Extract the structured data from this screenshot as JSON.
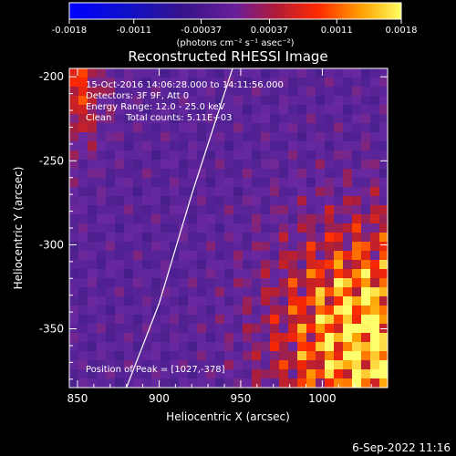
{
  "colorbar": {
    "ticks": [
      "-0.0018",
      "-0.0011",
      "-0.00037",
      "0.00037",
      "0.0011",
      "0.0018"
    ],
    "unit_label": "(photons cm⁻² s⁻¹ asec⁻²)"
  },
  "chart_data": {
    "type": "heatmap",
    "title": "Reconstructed RHESSI Image",
    "xlabel": "Heliocentric X (arcsec)",
    "ylabel": "Heliocentric Y (arcsec)",
    "xlim": [
      845,
      1040
    ],
    "ylim": [
      -385,
      -195
    ],
    "xticks": [
      "850",
      "900",
      "950",
      "1000"
    ],
    "xtick_values": [
      850,
      900,
      950,
      1000
    ],
    "yticks": [
      "-200",
      "-250",
      "-300",
      "-350"
    ],
    "ytick_values": [
      -200,
      -250,
      -300,
      -350
    ],
    "color_range": [
      -0.0018,
      0.0018
    ],
    "annotations": [
      "15-Oct-2016 14:06:28.000 to 14:11:56.000",
      "Detectors: 3F 9F, Att 0",
      "Energy Range: 12.0 - 25.0 keV",
      "Clean     Total counts: 5.11E+03"
    ],
    "peak_label": "Position of Peak = [1027,-378]",
    "peak": [
      1027,
      -378
    ],
    "limb_curve": [
      [
        880,
        -385
      ],
      [
        900,
        -335
      ],
      [
        920,
        -270
      ],
      [
        945,
        -195
      ]
    ]
  },
  "footer_timestamp": "6-Sep-2022 11:16"
}
